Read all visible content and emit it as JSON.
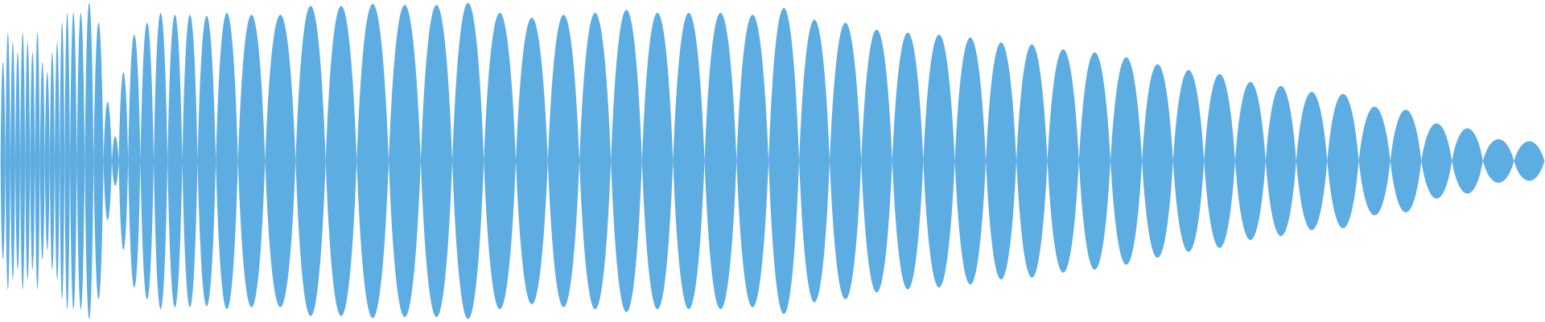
{
  "waveform": {
    "color": "#5dade2",
    "xlim": [
      0,
      1568
    ],
    "ylim": [
      -163,
      163
    ],
    "times": [
      3,
      8,
      13,
      18,
      23,
      28,
      33,
      38,
      43,
      48,
      53,
      58,
      63,
      68,
      74,
      82,
      90,
      100,
      110,
      117,
      124,
      136,
      149,
      163,
      177,
      193,
      208,
      230,
      253,
      285,
      315,
      346,
      378,
      411,
      443,
      475,
      507,
      540,
      572,
      604,
      636,
      667,
      699,
      731,
      764,
      796,
      826,
      858,
      890,
      921,
      953,
      985,
      1016,
      1047,
      1079,
      1111,
      1143,
      1175,
      1206,
      1238,
      1269,
      1300,
      1331,
      1363,
      1395,
      1427,
      1458,
      1489,
      1521,
      1552
    ],
    "amplitudes": [
      100,
      130,
      120,
      110,
      130,
      120,
      110,
      130,
      100,
      90,
      110,
      120,
      140,
      150,
      150,
      150,
      160,
      140,
      60,
      25,
      90,
      128,
      140,
      150,
      148,
      148,
      147,
      150,
      148,
      148,
      157,
      157,
      159,
      158,
      158,
      160,
      150,
      145,
      148,
      150,
      153,
      150,
      150,
      150,
      148,
      155,
      143,
      140,
      133,
      130,
      128,
      125,
      120,
      118,
      113,
      110,
      105,
      98,
      92,
      88,
      80,
      76,
      70,
      68,
      55,
      52,
      38,
      33,
      22,
      20
    ]
  }
}
